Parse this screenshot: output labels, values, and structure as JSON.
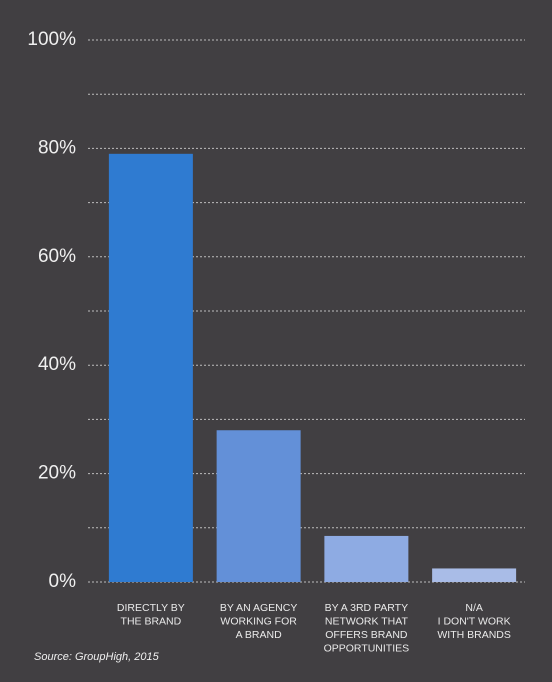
{
  "chart_data": {
    "type": "bar",
    "categories": [
      [
        "DIRECTLY BY",
        "THE BRAND"
      ],
      [
        "BY AN AGENCY",
        "WORKING FOR",
        "A BRAND"
      ],
      [
        "BY A 3RD PARTY",
        "NETWORK THAT",
        "OFFERS BRAND",
        "OPPORTUNITIES"
      ],
      [
        "N/A",
        "I DON'T WORK",
        "WITH BRANDS"
      ]
    ],
    "values": [
      79,
      28,
      8.5,
      2.5
    ],
    "colors": [
      "#2f7bd1",
      "#6390d8",
      "#8eabe3",
      "#a9bce7"
    ],
    "ylim": [
      0,
      100
    ],
    "yticks": [
      {
        "value": 0,
        "label": "0%"
      },
      {
        "value": 20,
        "label": "20%"
      },
      {
        "value": 40,
        "label": "40%"
      },
      {
        "value": 60,
        "label": "60%"
      },
      {
        "value": 80,
        "label": "80%"
      },
      {
        "value": 100,
        "label": "100%"
      }
    ],
    "minor_yticks": [
      10,
      30,
      50,
      70,
      90
    ],
    "grid": true,
    "source": "Source: GroupHigh, 2015"
  }
}
